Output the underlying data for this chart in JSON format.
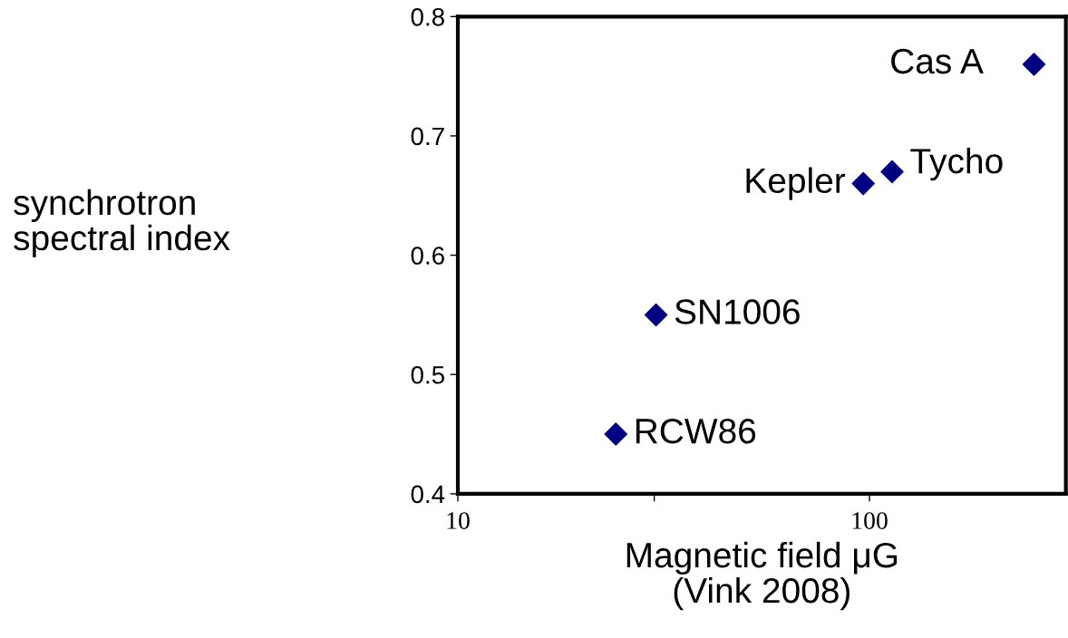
{
  "chart_data": {
    "type": "scatter",
    "xlabel": "Magnetic field μG\n(Vink 2008)",
    "x": [
      24.2,
      30.3,
      96.6,
      113.5,
      251
    ],
    "series": [
      {
        "color": "#000080",
        "values": [
          0.45,
          0.55,
          0.66,
          0.67,
          0.76
        ]
      }
    ],
    "marker": "diamond",
    "log": "x",
    "grid": false,
    "xlim": [
      10,
      300
    ],
    "xticks": [
      10,
      {
        "value": 30,
        "label": null
      },
      100
    ],
    "ylim": [
      0.4,
      0.8
    ],
    "yticks": [
      0.4,
      0.5,
      0.6,
      0.7,
      0.8
    ],
    "annotations": [
      "synchrotron\nspectral index",
      {
        "text": "RCW86",
        "x": 24.2,
        "y": 0.45
      },
      {
        "text": "SN1006",
        "x": 30.3,
        "y": 0.55
      },
      {
        "text": "Kepler",
        "x": 96.6,
        "y": 0.66
      },
      {
        "text": "Tycho",
        "x": 113.5,
        "y": 0.67
      },
      {
        "text": "Cas A",
        "x": 251,
        "y": 0.76
      }
    ]
  }
}
